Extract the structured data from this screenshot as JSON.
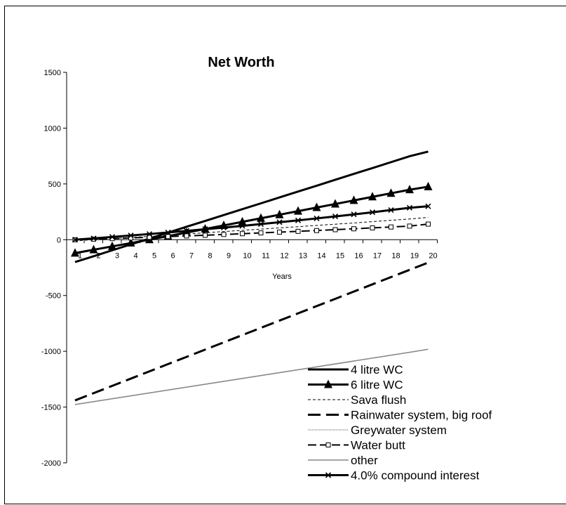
{
  "chart_data": {
    "type": "line",
    "title": "Net Worth",
    "xlabel": "Years",
    "ylabel": "",
    "x": [
      1,
      2,
      3,
      4,
      5,
      6,
      7,
      8,
      9,
      10,
      11,
      12,
      13,
      14,
      15,
      16,
      17,
      18,
      19,
      20
    ],
    "xlim": [
      1,
      20
    ],
    "ylim": [
      -2000,
      1500
    ],
    "yticks": [
      -2000,
      -1500,
      -1000,
      -500,
      0,
      500,
      1000,
      1500
    ],
    "grid": false,
    "legend_position": "bottom-right",
    "series": [
      {
        "name": "4 litre WC",
        "style": "solid-thick",
        "marker": "none",
        "values": [
          -200,
          -148,
          -95,
          -42,
          10,
          63,
          116,
          168,
          221,
          274,
          326,
          379,
          432,
          484,
          537,
          590,
          642,
          695,
          748,
          790
        ]
      },
      {
        "name": "6 litre WC",
        "style": "solid-thick",
        "marker": "triangle",
        "values": [
          -120,
          -90,
          -60,
          -30,
          0,
          32,
          64,
          96,
          128,
          160,
          192,
          224,
          256,
          288,
          320,
          352,
          384,
          416,
          448,
          475
        ]
      },
      {
        "name": "Sava flush",
        "style": "dashed-thin",
        "marker": "none",
        "values": [
          -10,
          0,
          10,
          20,
          30,
          40,
          51,
          62,
          73,
          84,
          95,
          106,
          117,
          128,
          139,
          150,
          162,
          174,
          186,
          200
        ]
      },
      {
        "name": "Rainwater system, big roof",
        "style": "dashed-thick",
        "marker": "none",
        "values": [
          -1440,
          -1375,
          -1310,
          -1245,
          -1180,
          -1115,
          -1050,
          -985,
          -920,
          -855,
          -790,
          -725,
          -660,
          -595,
          -530,
          -465,
          -400,
          -335,
          -270,
          -205
        ]
      },
      {
        "name": "Greywater system",
        "style": "dotted-thin",
        "marker": "none",
        "values": [
          -1475,
          -1449,
          -1423,
          -1397,
          -1371,
          -1345,
          -1319,
          -1293,
          -1267,
          -1241,
          -1215,
          -1189,
          -1163,
          -1137,
          -1111,
          -1085,
          -1059,
          -1033,
          -1007,
          -980
        ]
      },
      {
        "name": "Water butt",
        "style": "dashed-medium",
        "marker": "square",
        "values": [
          0,
          5,
          10,
          16,
          22,
          28,
          34,
          40,
          47,
          54,
          61,
          68,
          75,
          82,
          90,
          98,
          106,
          114,
          122,
          140
        ]
      },
      {
        "name": "other",
        "style": "solid-thin",
        "marker": "none",
        "values": [
          -1478,
          -1452,
          -1426,
          -1400,
          -1374,
          -1348,
          -1322,
          -1296,
          -1270,
          -1244,
          -1218,
          -1192,
          -1166,
          -1140,
          -1114,
          -1088,
          -1062,
          -1036,
          -1010,
          -982
        ]
      },
      {
        "name": "4.0% compound interest",
        "style": "solid-thick",
        "marker": "x",
        "values": [
          0,
          12,
          25,
          38,
          51,
          65,
          79,
          94,
          109,
          124,
          140,
          157,
          173,
          191,
          209,
          227,
          246,
          266,
          286,
          300
        ]
      }
    ]
  }
}
